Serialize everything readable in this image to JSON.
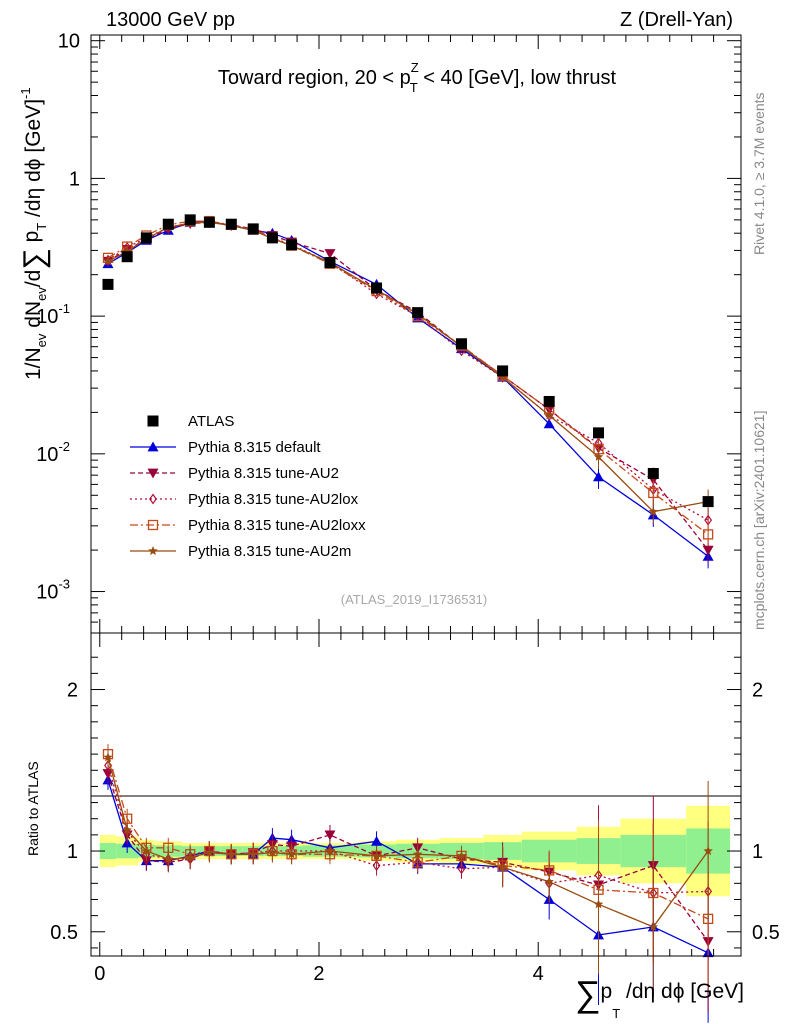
{
  "header": {
    "left": "13000 GeV pp",
    "right": "Z (Drell-Yan)"
  },
  "title": {
    "pre": "Toward region, 20 < p",
    "sup": "Z",
    "sub": "T",
    "post": " < 40 [GeV], low thrust"
  },
  "side_right": {
    "version": "Rivet 4.1.0, ≥ 3.7M events",
    "site": "mcplots.cern.ch [arXiv:2401.10621]"
  },
  "watermark": "(ATLAS_2019_I1736531)",
  "ylabel_top": {
    "a": "1/N",
    "a_sub": "ev",
    "b": " dN",
    "b_sub": "ev",
    "c": "/d",
    "sum": "∑",
    "d": " p",
    "d_sub": "T",
    "e": " /dη dϕ  [GeV]",
    "e_sup": "-1"
  },
  "ylabel_bottom": "Ratio to ATLAS",
  "xlabel": {
    "sum": "∑",
    "a": "p",
    "a_sub": "T",
    "b": " /dη dϕ [GeV]"
  },
  "colors": {
    "atlas": "#000000",
    "default": "#0000dd",
    "au2": "#99003a",
    "au2lox": "#b0103a",
    "au2loxx": "#c44a18",
    "au2m": "#9a4c10",
    "yellow": "#ffff80",
    "green": "#90f090"
  },
  "chart_data": [
    {
      "type": "scatter",
      "name": "main",
      "yscale": "log",
      "xlim": [
        -0.08,
        5.85
      ],
      "ylim": [
        0.0005,
        11
      ],
      "yticks": [
        {
          "v": 0.001,
          "m": "10",
          "e": "-3"
        },
        {
          "v": 0.01,
          "m": "10",
          "e": "-2"
        },
        {
          "v": 0.1,
          "m": "10",
          "e": "-1"
        },
        {
          "v": 1,
          "m": "1",
          "e": ""
        },
        {
          "v": 10,
          "m": "10",
          "e": ""
        }
      ],
      "x": [
        0.075,
        0.25,
        0.425,
        0.625,
        0.825,
        1.0,
        1.2,
        1.4,
        1.575,
        1.75,
        2.1,
        2.525,
        2.9,
        3.3,
        3.675,
        4.1,
        4.55,
        5.05,
        5.55
      ],
      "series": [
        {
          "name": "ATLAS",
          "key": "atlas",
          "marker": "square",
          "dash": "",
          "values": [
            0.17,
            0.27,
            0.37,
            0.465,
            0.5,
            0.48,
            0.465,
            0.43,
            0.37,
            0.33,
            0.245,
            0.16,
            0.106,
            0.063,
            0.04,
            0.024,
            0.0142,
            0.0072,
            0.0045
          ]
        },
        {
          "name": "Pythia 8.315 default",
          "key": "default",
          "marker": "tri-up",
          "dash": "",
          "values": [
            0.24,
            0.29,
            0.355,
            0.42,
            0.48,
            0.485,
            0.455,
            0.42,
            0.4,
            0.355,
            0.25,
            0.17,
            0.097,
            0.058,
            0.036,
            0.0165,
            0.0068,
            0.0036,
            0.0018
          ]
        },
        {
          "name": "Pythia 8.315 tune-AU2",
          "key": "au2",
          "marker": "tri-down",
          "dash": "5,3",
          "values": [
            0.25,
            0.305,
            0.36,
            0.43,
            0.47,
            0.48,
            0.46,
            0.43,
            0.385,
            0.345,
            0.285,
            0.155,
            0.107,
            0.06,
            0.037,
            0.021,
            0.011,
            0.0065,
            0.002
          ]
        },
        {
          "name": "Pythia 8.315 tune-AU2lox",
          "key": "au2lox",
          "marker": "diamond",
          "dash": "2,3",
          "values": [
            0.255,
            0.315,
            0.37,
            0.44,
            0.475,
            0.48,
            0.455,
            0.43,
            0.37,
            0.33,
            0.245,
            0.145,
            0.1,
            0.056,
            0.036,
            0.019,
            0.012,
            0.0055,
            0.0033
          ]
        },
        {
          "name": "Pythia 8.315 tune-AU2loxx",
          "key": "au2loxx",
          "marker": "square-open",
          "dash": "8,3,2,3",
          "values": [
            0.265,
            0.32,
            0.385,
            0.46,
            0.49,
            0.49,
            0.46,
            0.425,
            0.37,
            0.325,
            0.24,
            0.152,
            0.1,
            0.061,
            0.037,
            0.021,
            0.0108,
            0.0052,
            0.0026
          ]
        },
        {
          "name": "Pythia 8.315 tune-AU2m",
          "key": "au2m",
          "marker": "star",
          "dash": "",
          "values": [
            0.25,
            0.295,
            0.365,
            0.44,
            0.475,
            0.48,
            0.455,
            0.42,
            0.365,
            0.325,
            0.245,
            0.155,
            0.104,
            0.06,
            0.036,
            0.019,
            0.0095,
            0.0038,
            0.0045
          ]
        }
      ]
    },
    {
      "type": "scatter",
      "name": "ratio",
      "ylim": [
        0.35,
        2.35
      ],
      "xlim": [
        -0.08,
        5.85
      ],
      "yticks": [
        0.5,
        1,
        2
      ],
      "xticks": [
        0,
        2,
        4
      ],
      "x": [
        0.075,
        0.25,
        0.425,
        0.625,
        0.825,
        1.0,
        1.2,
        1.4,
        1.575,
        1.75,
        2.1,
        2.525,
        2.9,
        3.3,
        3.675,
        4.1,
        4.55,
        5.05,
        5.55
      ],
      "bin_edges": [
        0.0,
        0.15,
        0.35,
        0.5,
        0.75,
        0.9,
        1.1,
        1.3,
        1.5,
        1.65,
        1.85,
        2.35,
        2.7,
        3.1,
        3.5,
        3.85,
        4.35,
        4.75,
        5.35,
        5.75
      ],
      "band_yellow": [
        [
          0.9,
          1.1
        ],
        [
          0.91,
          1.09
        ],
        [
          0.93,
          1.07
        ],
        [
          0.94,
          1.06
        ],
        [
          0.95,
          1.05
        ],
        [
          0.95,
          1.05
        ],
        [
          0.95,
          1.05
        ],
        [
          0.95,
          1.05
        ],
        [
          0.95,
          1.05
        ],
        [
          0.95,
          1.05
        ],
        [
          0.95,
          1.05
        ],
        [
          0.94,
          1.06
        ],
        [
          0.93,
          1.07
        ],
        [
          0.92,
          1.08
        ],
        [
          0.9,
          1.1
        ],
        [
          0.88,
          1.12
        ],
        [
          0.85,
          1.15
        ],
        [
          0.8,
          1.2
        ],
        [
          0.72,
          1.28
        ]
      ],
      "band_green": [
        [
          0.95,
          1.05
        ],
        [
          0.955,
          1.045
        ],
        [
          0.96,
          1.04
        ],
        [
          0.965,
          1.035
        ],
        [
          0.97,
          1.03
        ],
        [
          0.97,
          1.03
        ],
        [
          0.97,
          1.03
        ],
        [
          0.97,
          1.03
        ],
        [
          0.97,
          1.03
        ],
        [
          0.97,
          1.03
        ],
        [
          0.965,
          1.035
        ],
        [
          0.96,
          1.04
        ],
        [
          0.955,
          1.045
        ],
        [
          0.95,
          1.05
        ],
        [
          0.945,
          1.055
        ],
        [
          0.93,
          1.07
        ],
        [
          0.92,
          1.08
        ],
        [
          0.9,
          1.1
        ],
        [
          0.86,
          1.14
        ]
      ],
      "series": [
        {
          "name": "Pythia 8.315 default",
          "key": "default",
          "marker": "tri-up",
          "dash": "",
          "values": [
            1.44,
            1.05,
            0.94,
            0.94,
            0.97,
            1.0,
            0.98,
            0.98,
            1.08,
            1.07,
            1.02,
            1.06,
            0.92,
            0.92,
            0.9,
            0.7,
            0.48,
            0.53,
            0.37
          ]
        },
        {
          "name": "Pythia 8.315 tune-AU2",
          "key": "au2",
          "marker": "tri-down",
          "dash": "5,3",
          "values": [
            1.48,
            1.1,
            0.94,
            0.93,
            0.95,
            1.0,
            0.98,
            0.99,
            1.04,
            1.03,
            1.1,
            0.97,
            1.02,
            0.95,
            0.93,
            0.87,
            0.79,
            0.91,
            0.44
          ]
        },
        {
          "name": "Pythia 8.315 tune-AU2lox",
          "key": "au2lox",
          "marker": "diamond",
          "dash": "2,3",
          "values": [
            1.53,
            1.12,
            0.98,
            0.95,
            0.95,
            1.0,
            0.98,
            0.99,
            1.0,
            1.0,
            1.0,
            0.91,
            0.93,
            0.89,
            0.9,
            0.8,
            0.85,
            0.74,
            0.75
          ]
        },
        {
          "name": "Pythia 8.315 tune-AU2loxx",
          "key": "au2loxx",
          "marker": "square-open",
          "dash": "8,3,2,3",
          "values": [
            1.6,
            1.2,
            1.02,
            1.02,
            0.98,
            1.0,
            0.98,
            0.98,
            1.0,
            0.98,
            0.98,
            0.97,
            0.93,
            0.97,
            0.91,
            0.88,
            0.76,
            0.74,
            0.58
          ]
        },
        {
          "name": "Pythia 8.315 tune-AU2m",
          "key": "au2m",
          "marker": "star",
          "dash": "",
          "values": [
            1.58,
            1.13,
            1.0,
            0.95,
            0.96,
            0.99,
            0.98,
            0.98,
            0.99,
            0.98,
            1.0,
            0.97,
            0.98,
            0.97,
            0.9,
            0.81,
            0.67,
            0.53,
            1.0
          ]
        }
      ]
    }
  ]
}
